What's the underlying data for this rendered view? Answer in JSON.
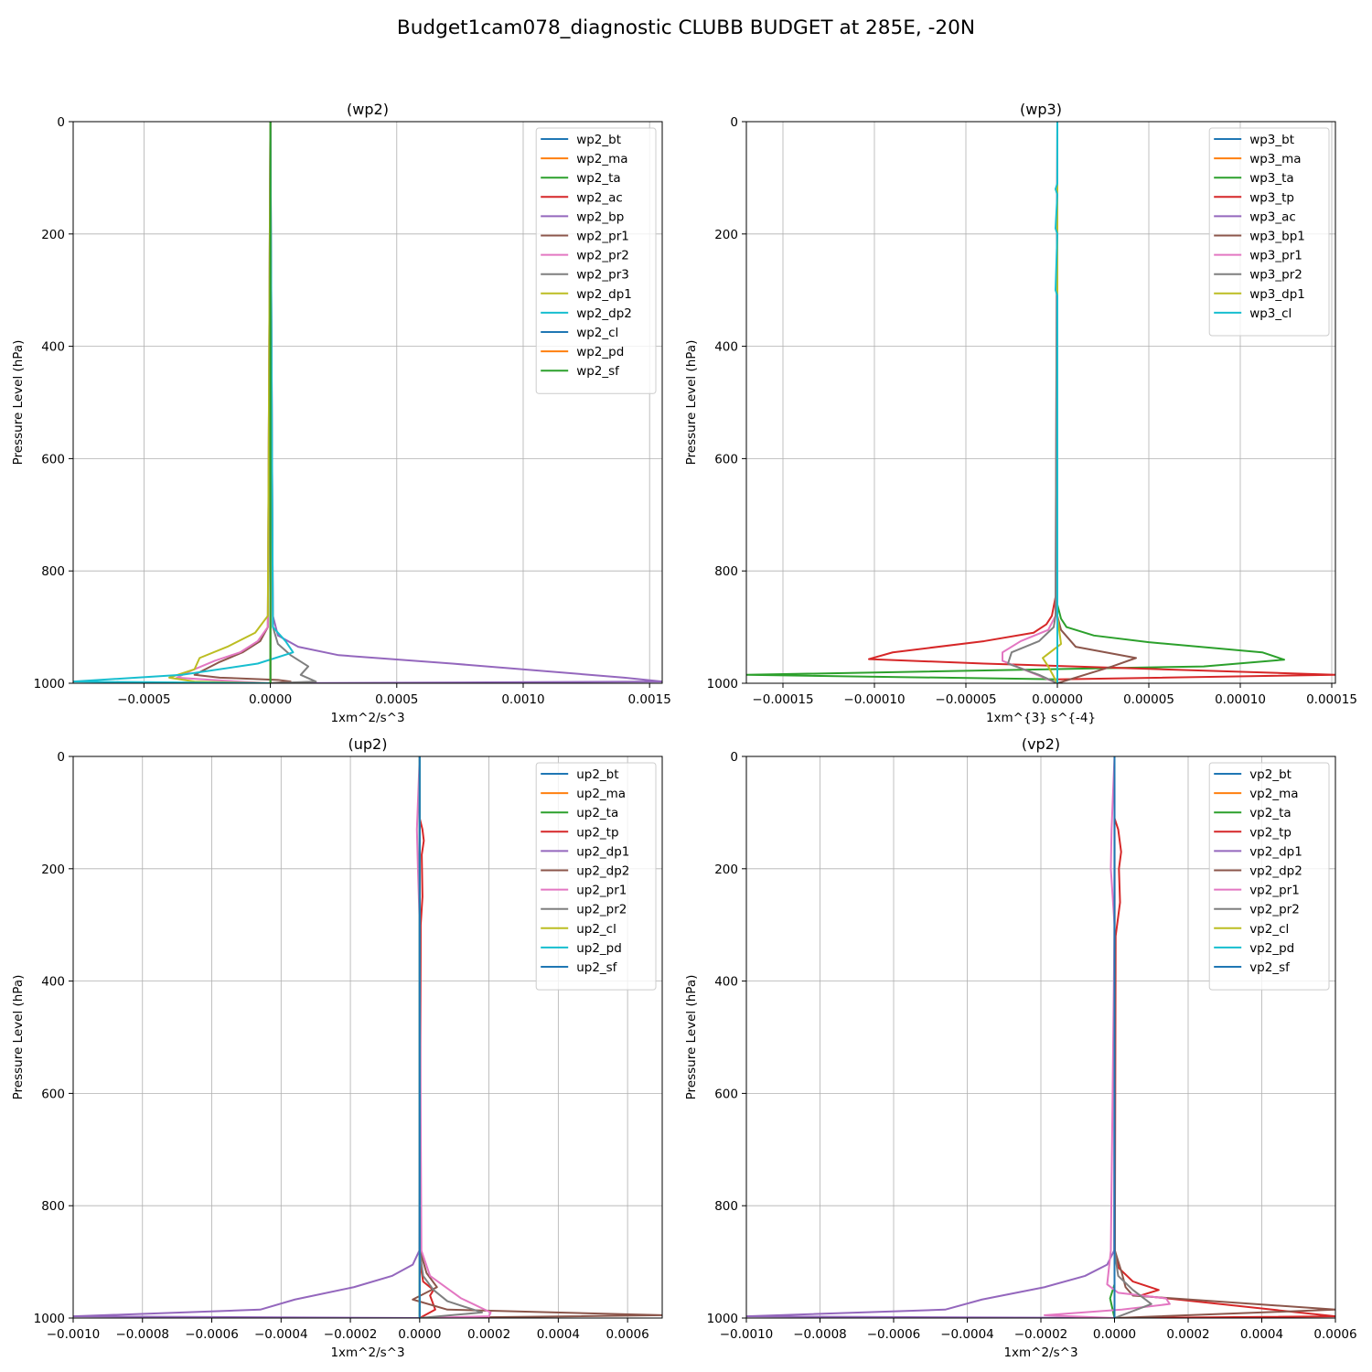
{
  "figure": {
    "suptitle": "Budget1cam078_diagnostic CLUBB BUDGET at 285E, -20N",
    "colors": [
      "#1f77b4",
      "#ff7f0e",
      "#2ca02c",
      "#d62728",
      "#9467bd",
      "#8c564b",
      "#e377c2",
      "#7f7f7f",
      "#bcbd22",
      "#17becf"
    ]
  },
  "chart_data": [
    {
      "type": "line",
      "title": "(wp2)",
      "xlabel": "1xm^2/s^3",
      "ylabel": "Pressure Level (hPa)",
      "xlim": [
        -0.00078,
        0.00155
      ],
      "ylim": [
        1000,
        0
      ],
      "xticks": [
        -0.0005,
        0.0,
        0.0005,
        0.001,
        0.0015
      ],
      "xtick_labels": [
        "−0.0005",
        "0.0000",
        "0.0005",
        "0.0010",
        "0.0015"
      ],
      "yticks": [
        0,
        200,
        400,
        600,
        800,
        1000
      ],
      "ytick_labels": [
        "0",
        "200",
        "400",
        "600",
        "800",
        "1000"
      ],
      "grid": true,
      "legend": "top-right",
      "series": [
        {
          "name": "wp2_bt",
          "x": [
            0,
            0,
            0
          ],
          "y": [
            0,
            900,
            1000
          ]
        },
        {
          "name": "wp2_ma",
          "x": [
            0,
            0,
            0
          ],
          "y": [
            0,
            900,
            1000
          ]
        },
        {
          "name": "wp2_ta",
          "x": [
            0,
            0,
            0,
            0,
            0
          ],
          "y": [
            0,
            870,
            930,
            980,
            1000
          ]
        },
        {
          "name": "wp2_ac",
          "x": [
            0,
            0,
            0
          ],
          "y": [
            0,
            900,
            1000
          ]
        },
        {
          "name": "wp2_bp",
          "x": [
            0,
            1e-05,
            3e-05,
            0.00011,
            0.00027,
            0.00072,
            0.0014,
            0.00155,
            0.0
          ],
          "y": [
            0,
            880,
            915,
            935,
            950,
            965,
            990,
            997,
            1000
          ]
        },
        {
          "name": "wp2_pr1",
          "x": [
            0,
            -1e-05,
            -4e-05,
            -0.00011,
            -0.0002,
            -0.0003,
            -0.0002,
            3e-05,
            8e-05,
            0.0
          ],
          "y": [
            0,
            900,
            925,
            945,
            962,
            985,
            990,
            994,
            997,
            1000
          ]
        },
        {
          "name": "wp2_pr2",
          "x": [
            0,
            -1e-05,
            -5e-05,
            -0.00012,
            -0.00022,
            -0.0003,
            -0.00037,
            -0.0002,
            0.0
          ],
          "y": [
            0,
            900,
            925,
            945,
            960,
            975,
            990,
            995,
            1000
          ]
        },
        {
          "name": "wp2_pr3",
          "x": [
            0,
            1e-05,
            3e-05,
            8e-05,
            0.00015,
            0.00012,
            0.00018,
            0.0
          ],
          "y": [
            0,
            900,
            930,
            950,
            970,
            985,
            997,
            1000
          ]
        },
        {
          "name": "wp2_dp1",
          "x": [
            0,
            -1e-05,
            -6e-05,
            -0.00017,
            -0.00028,
            -0.0003,
            -0.0004,
            -0.0003,
            0.0
          ],
          "y": [
            0,
            880,
            910,
            935,
            955,
            975,
            990,
            997,
            1000
          ]
        },
        {
          "name": "wp2_dp2",
          "x": [
            0,
            1e-05,
            6e-05,
            9e-05,
            -5e-05,
            -0.00035,
            -0.00078,
            0.0
          ],
          "y": [
            0,
            900,
            925,
            945,
            965,
            985,
            997,
            1000
          ]
        },
        {
          "name": "wp2_cl",
          "x": [
            0,
            0
          ],
          "y": [
            0,
            1000
          ]
        },
        {
          "name": "wp2_pd",
          "x": [
            0,
            0
          ],
          "y": [
            0,
            1000
          ]
        },
        {
          "name": "wp2_sf",
          "x": [
            0,
            0,
            0
          ],
          "y": [
            0,
            950,
            1000
          ]
        }
      ]
    },
    {
      "type": "line",
      "title": "(wp3)",
      "xlabel": "1xm^{3} s^{-4}",
      "ylabel": "Pressure Level (hPa)",
      "xlim": [
        -0.00017,
        0.000152
      ],
      "ylim": [
        1000,
        0
      ],
      "xticks": [
        -0.00015,
        -0.0001,
        -5e-05,
        0.0,
        5e-05,
        0.0001,
        0.00015
      ],
      "xtick_labels": [
        "−0.00015",
        "−0.00010",
        "−0.00005",
        "0.00000",
        "0.00005",
        "0.00010",
        "0.00015"
      ],
      "yticks": [
        0,
        200,
        400,
        600,
        800,
        1000
      ],
      "ytick_labels": [
        "0",
        "200",
        "400",
        "600",
        "800",
        "1000"
      ],
      "grid": true,
      "legend": "top-right",
      "series": [
        {
          "name": "wp3_bt",
          "x": [
            0,
            0
          ],
          "y": [
            0,
            1000
          ]
        },
        {
          "name": "wp3_ma",
          "x": [
            0,
            0
          ],
          "y": [
            0,
            1000
          ]
        },
        {
          "name": "wp3_ta",
          "x": [
            0,
            0,
            2e-06,
            5e-06,
            2e-05,
            5e-05,
            0.000112,
            0.000124,
            8e-05,
            -0.00017,
            0.0,
            0.0
          ],
          "y": [
            0,
            860,
            885,
            900,
            915,
            927,
            945,
            958,
            970,
            985,
            993,
            1000
          ]
        },
        {
          "name": "wp3_tp",
          "x": [
            0,
            0,
            -3e-06,
            -6e-06,
            -1.3e-05,
            -4e-05,
            -9e-05,
            -0.000103,
            -4e-05,
            0.000152,
            0.0,
            0.0
          ],
          "y": [
            0,
            830,
            880,
            895,
            910,
            925,
            945,
            957,
            965,
            985,
            993,
            1000
          ]
        },
        {
          "name": "wp3_ac",
          "x": [
            0,
            0
          ],
          "y": [
            0,
            1000
          ]
        },
        {
          "name": "wp3_bp1",
          "x": [
            0,
            0,
            2e-06,
            1e-05,
            4.3e-05,
            3e-05,
            0.0
          ],
          "y": [
            0,
            880,
            905,
            935,
            955,
            970,
            1000
          ]
        },
        {
          "name": "wp3_pr1",
          "x": [
            0,
            -1e-06,
            -5e-06,
            -2e-05,
            -3e-05,
            -3e-05,
            0.0
          ],
          "y": [
            0,
            880,
            905,
            925,
            945,
            960,
            1000
          ]
        },
        {
          "name": "wp3_pr2",
          "x": [
            0,
            -1e-06,
            -2e-06,
            -1e-05,
            -2.5e-05,
            -2.7e-05,
            -1e-05,
            0.0
          ],
          "y": [
            0,
            880,
            900,
            925,
            945,
            965,
            985,
            1000
          ]
        },
        {
          "name": "wp3_dp1",
          "x": [
            0,
            0,
            2e-06,
            -8e-06,
            -5e-06,
            0.0
          ],
          "y": [
            0,
            880,
            930,
            955,
            970,
            1000
          ]
        },
        {
          "name": "wp3_cl",
          "x": [
            0,
            0,
            -1e-06,
            0,
            -1e-06,
            0,
            -1e-06,
            0,
            0
          ],
          "y": [
            0,
            110,
            120,
            130,
            190,
            200,
            300,
            310,
            1000
          ]
        }
      ]
    },
    {
      "type": "line",
      "title": "(up2)",
      "xlabel": "1xm^2/s^3",
      "ylabel": "Pressure Level (hPa)",
      "xlim": [
        -0.001,
        0.0007
      ],
      "ylim": [
        1000,
        0
      ],
      "xticks": [
        -0.001,
        -0.0008,
        -0.0006,
        -0.0004,
        -0.0002,
        0.0,
        0.0002,
        0.0004,
        0.0006
      ],
      "xtick_labels": [
        "−0.0010",
        "−0.0008",
        "−0.0006",
        "−0.0004",
        "−0.0002",
        "0.0000",
        "0.0002",
        "0.0004",
        "0.0006"
      ],
      "yticks": [
        0,
        200,
        400,
        600,
        800,
        1000
      ],
      "ytick_labels": [
        "0",
        "200",
        "400",
        "600",
        "800",
        "1000"
      ],
      "grid": true,
      "legend": "top-right",
      "series": [
        {
          "name": "up2_bt",
          "x": [
            0,
            0
          ],
          "y": [
            0,
            1000
          ]
        },
        {
          "name": "up2_ma",
          "x": [
            0,
            0
          ],
          "y": [
            0,
            1000
          ]
        },
        {
          "name": "up2_ta",
          "x": [
            0,
            0,
            0,
            0
          ],
          "y": [
            0,
            900,
            960,
            1000
          ]
        },
        {
          "name": "up2_tp",
          "x": [
            0,
            0,
            8e-06,
            1.2e-05,
            6e-06,
            8e-06,
            3e-06,
            1e-06,
            1e-05,
            4e-05,
            3e-05,
            4.5e-05,
            0.0
          ],
          "y": [
            0,
            110,
            130,
            150,
            175,
            250,
            300,
            900,
            935,
            950,
            960,
            985,
            1000
          ]
        },
        {
          "name": "up2_dp1",
          "x": [
            0,
            -1e-06,
            -2e-05,
            -8e-05,
            -0.00019,
            -0.00036,
            -0.00046,
            -0.001,
            0.0
          ],
          "y": [
            0,
            880,
            905,
            925,
            945,
            967,
            985,
            997,
            1000
          ]
        },
        {
          "name": "up2_dp2",
          "x": [
            0,
            1e-06,
            2e-05,
            5e-05,
            -2e-05,
            8e-05,
            0.0007,
            0.0
          ],
          "y": [
            0,
            880,
            920,
            945,
            967,
            985,
            995,
            1000
          ]
        },
        {
          "name": "up2_pr1",
          "x": [
            0,
            -8e-06,
            -5e-06,
            0,
            5e-06,
            3e-05,
            0.00012,
            0.000205,
            0.0002,
            0.0
          ],
          "y": [
            0,
            130,
            200,
            300,
            880,
            925,
            965,
            990,
            997,
            1000
          ]
        },
        {
          "name": "up2_pr2",
          "x": [
            0,
            0,
            1e-05,
            4e-05,
            8e-05,
            0.00018,
            0.0
          ],
          "y": [
            0,
            880,
            925,
            950,
            970,
            990,
            1000
          ]
        },
        {
          "name": "up2_cl",
          "x": [
            0,
            0
          ],
          "y": [
            0,
            1000
          ]
        },
        {
          "name": "up2_pd",
          "x": [
            0,
            0
          ],
          "y": [
            0,
            1000
          ]
        },
        {
          "name": "up2_sf",
          "x": [
            0,
            0
          ],
          "y": [
            0,
            1000
          ]
        }
      ]
    },
    {
      "type": "line",
      "title": "(vp2)",
      "xlabel": "1xm^2/s^3",
      "ylabel": "Pressure Level (hPa)",
      "xlim": [
        -0.001,
        0.0006
      ],
      "ylim": [
        1000,
        0
      ],
      "xticks": [
        -0.001,
        -0.0008,
        -0.0006,
        -0.0004,
        -0.0002,
        0.0,
        0.0002,
        0.0004,
        0.0006
      ],
      "xtick_labels": [
        "−0.0010",
        "−0.0008",
        "−0.0006",
        "−0.0004",
        "−0.0002",
        "0.0000",
        "0.0002",
        "0.0004",
        "0.0006"
      ],
      "yticks": [
        0,
        200,
        400,
        600,
        800,
        1000
      ],
      "ytick_labels": [
        "0",
        "200",
        "400",
        "600",
        "800",
        "1000"
      ],
      "grid": true,
      "legend": "top-right",
      "series": [
        {
          "name": "vp2_bt",
          "x": [
            0,
            0
          ],
          "y": [
            0,
            1000
          ]
        },
        {
          "name": "vp2_ma",
          "x": [
            0,
            0
          ],
          "y": [
            0,
            1000
          ]
        },
        {
          "name": "vp2_ta",
          "x": [
            0,
            0,
            0,
            -1.2e-05,
            0.0
          ],
          "y": [
            0,
            880,
            940,
            965,
            1000
          ]
        },
        {
          "name": "vp2_tp",
          "x": [
            0,
            0,
            1e-05,
            1.8e-05,
            1.2e-05,
            1.5e-05,
            3e-06,
            1e-06,
            1e-05,
            5e-05,
            0.00012,
            7e-05,
            0.0006,
            0.0
          ],
          "y": [
            0,
            110,
            130,
            170,
            200,
            260,
            320,
            880,
            910,
            935,
            950,
            960,
            997,
            1000
          ]
        },
        {
          "name": "vp2_dp1",
          "x": [
            0,
            -1e-06,
            -2e-05,
            -8e-05,
            -0.00019,
            -0.00036,
            -0.00046,
            -0.001,
            0.0
          ],
          "y": [
            0,
            880,
            905,
            925,
            945,
            967,
            985,
            997,
            1000
          ]
        },
        {
          "name": "vp2_dp2",
          "x": [
            0,
            1e-06,
            2e-05,
            3e-05,
            5e-05,
            0.0006,
            0.0
          ],
          "y": [
            0,
            880,
            920,
            945,
            960,
            985,
            1000
          ]
        },
        {
          "name": "vp2_pr1",
          "x": [
            0,
            -8e-06,
            -1e-05,
            -5e-06,
            0,
            -1e-05,
            -2e-05,
            1e-05,
            0.00014,
            0.00015,
            2e-05,
            -0.00019,
            0.0
          ],
          "y": [
            0,
            130,
            200,
            250,
            300,
            880,
            940,
            955,
            965,
            975,
            985,
            995,
            1000
          ]
        },
        {
          "name": "vp2_pr2",
          "x": [
            0,
            0,
            1e-05,
            5e-05,
            0.0001,
            0.0
          ],
          "y": [
            0,
            880,
            925,
            950,
            975,
            1000
          ]
        },
        {
          "name": "vp2_cl",
          "x": [
            0,
            0
          ],
          "y": [
            0,
            1000
          ]
        },
        {
          "name": "vp2_pd",
          "x": [
            0,
            0
          ],
          "y": [
            0,
            1000
          ]
        },
        {
          "name": "vp2_sf",
          "x": [
            0,
            0
          ],
          "y": [
            0,
            1000
          ]
        }
      ]
    }
  ]
}
